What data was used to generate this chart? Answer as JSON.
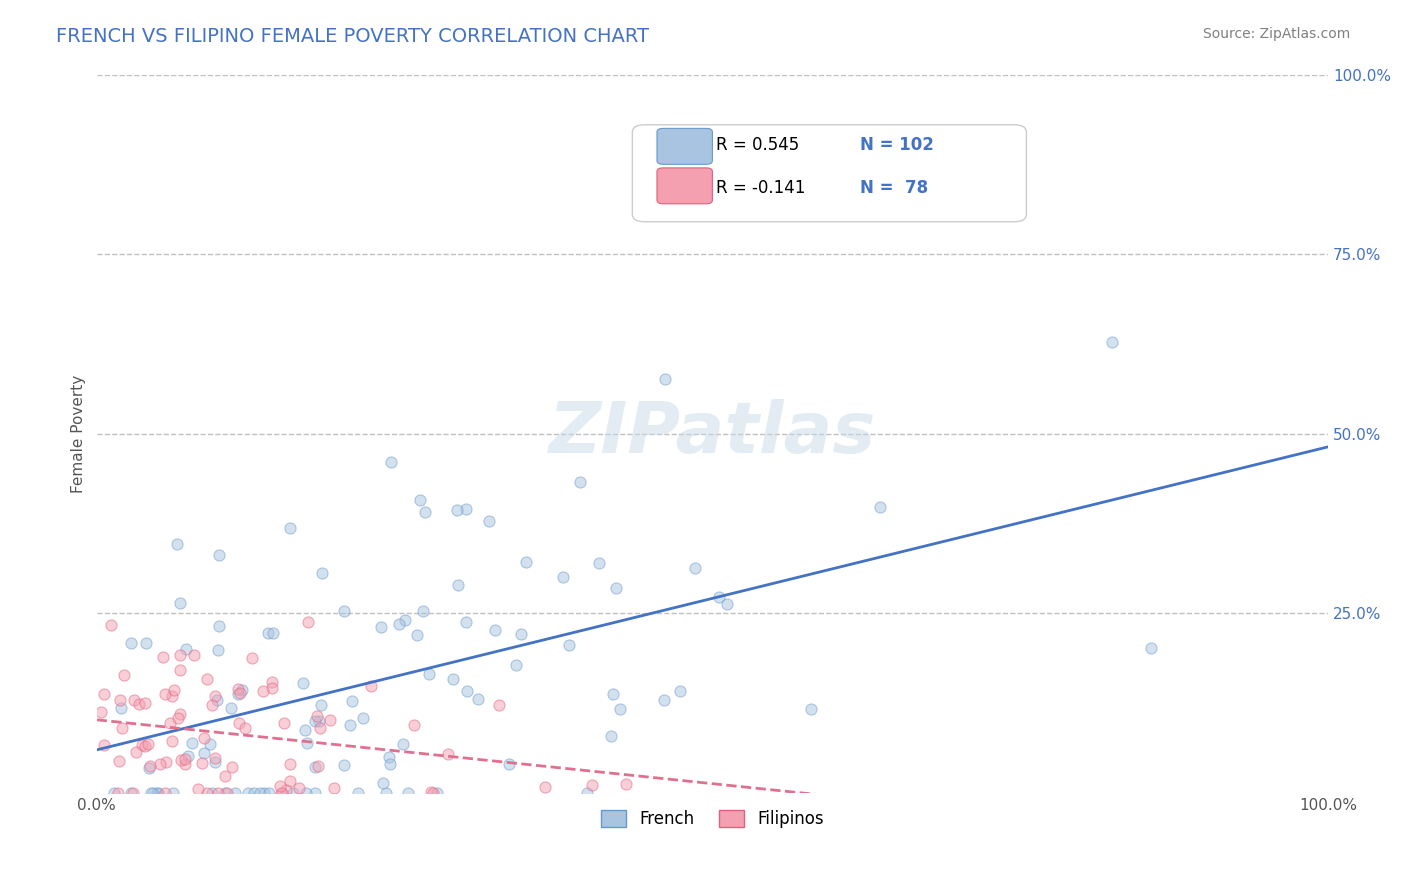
{
  "title": "FRENCH VS FILIPINO FEMALE POVERTY CORRELATION CHART",
  "source": "Source: ZipAtlas.com",
  "xlabel": "",
  "ylabel": "Female Poverty",
  "xlim": [
    0,
    1
  ],
  "ylim": [
    0,
    1
  ],
  "xtick_labels": [
    "0.0%",
    "100.0%"
  ],
  "ytick_labels": [
    "25.0%",
    "50.0%",
    "75.0%",
    "100.0%"
  ],
  "ytick_positions": [
    0.25,
    0.5,
    0.75,
    1.0
  ],
  "french_color": "#a8c4e0",
  "filipino_color": "#f4a0b0",
  "french_edge_color": "#6699cc",
  "filipino_edge_color": "#e06080",
  "trend_french_color": "#4472c4",
  "trend_filipino_color": "#e07090",
  "legend_french_label": "French",
  "legend_filipino_label": "Filipinos",
  "R_french": 0.545,
  "N_french": 102,
  "R_filipino": -0.141,
  "N_filipino": 78,
  "watermark": "ZIPatlas",
  "title_color": "#4472c4",
  "source_color": "#808080",
  "grid_color": "#c0c0c0",
  "grid_style": "--",
  "background_color": "#ffffff",
  "marker_size": 8,
  "marker_alpha": 0.5,
  "french_seed": 42,
  "filipino_seed": 99
}
